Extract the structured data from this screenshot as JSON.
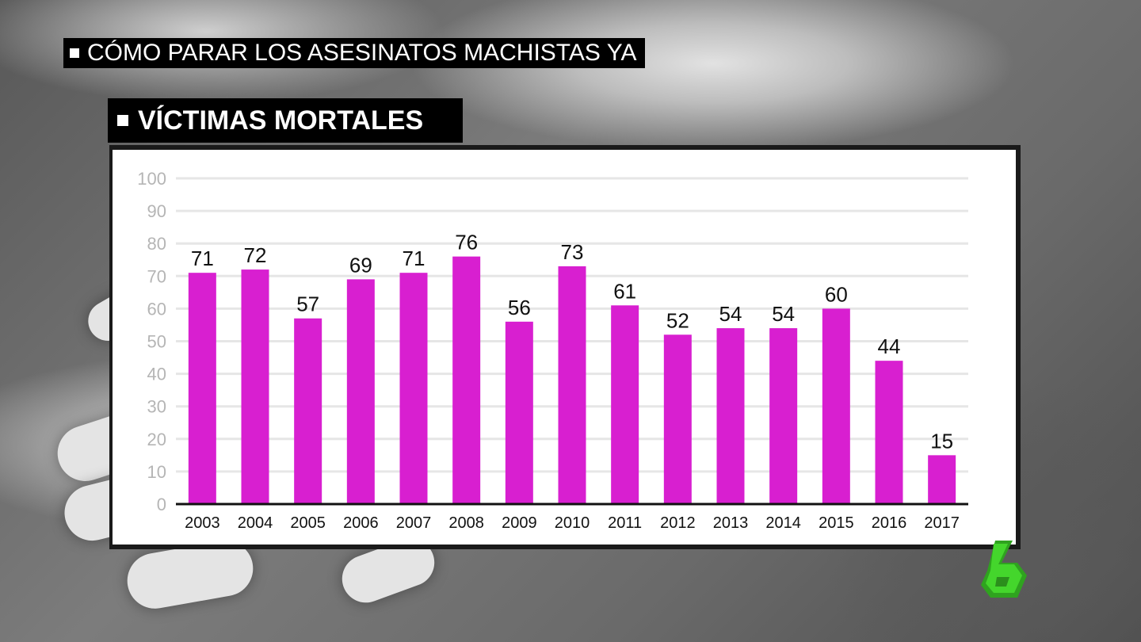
{
  "header": {
    "section_title": "CÓMO PARAR LOS ASESINATOS MACHISTAS YA",
    "chart_title": "VÍCTIMAS MORTALES"
  },
  "colors": {
    "bar": "#d81fd0",
    "axis": "#111111",
    "grid": "#e6e6e6",
    "tick_label": "#b5b5b5",
    "logo": "#44d62c"
  },
  "logo": {
    "icon": "lasexta-6-logo-icon"
  },
  "chart_data": {
    "type": "bar",
    "title": "VÍCTIMAS MORTALES",
    "xlabel": "",
    "ylabel": "",
    "categories": [
      "2003",
      "2004",
      "2005",
      "2006",
      "2007",
      "2008",
      "2009",
      "2010",
      "2011",
      "2012",
      "2013",
      "2014",
      "2015",
      "2016",
      "2017"
    ],
    "values": [
      71,
      72,
      57,
      69,
      71,
      76,
      56,
      73,
      61,
      52,
      54,
      54,
      60,
      44,
      15
    ],
    "ylim": [
      0,
      100
    ],
    "yticks": [
      0,
      10,
      20,
      30,
      40,
      50,
      60,
      70,
      80,
      90,
      100
    ],
    "grid": true,
    "data_labels": true
  }
}
